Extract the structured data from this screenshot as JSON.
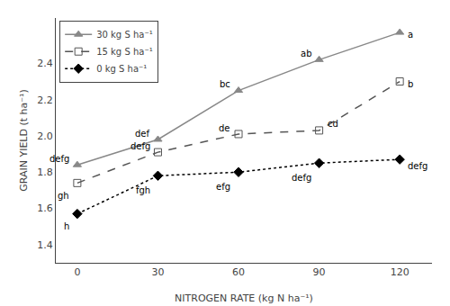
{
  "chart_data": {
    "type": "line",
    "x": [
      0,
      30,
      60,
      90,
      120
    ],
    "series": [
      {
        "name": "30 kg S ha⁻¹",
        "values": [
          1.84,
          1.98,
          2.25,
          2.42,
          2.57
        ],
        "color": "#888888",
        "marker": "triangle-up",
        "line_style": "solid",
        "annotations": [
          "defg",
          "def",
          "bc",
          "ab",
          "a"
        ]
      },
      {
        "name": "15 kg S ha⁻¹",
        "values": [
          1.74,
          1.91,
          2.01,
          2.03,
          2.3
        ],
        "color": "#555555",
        "marker": "square-open",
        "line_style": "dash",
        "annotations": [
          "gh",
          "defg",
          "de",
          "cd",
          "b"
        ]
      },
      {
        "name": "0 kg S ha⁻¹",
        "values": [
          1.57,
          1.78,
          1.8,
          1.85,
          1.87
        ],
        "color": "#000000",
        "marker": "diamond",
        "line_style": "dot",
        "annotations": [
          "h",
          "fgh",
          "efg",
          "defg",
          "defg"
        ]
      }
    ],
    "xlabel": "NITROGEN RATE (kg N ha⁻¹)",
    "ylabel": "GRAIN YIELD (t ha⁻¹)",
    "xlim": [
      -8,
      132
    ],
    "ylim": [
      1.3,
      2.65
    ],
    "xticks": [
      0,
      30,
      60,
      90,
      120
    ],
    "yticks": [
      1.4,
      1.6,
      1.8,
      {
        "value": 2.0,
        "label": "2.0"
      },
      2.2,
      2.4
    ],
    "grid": false,
    "legend": "upper left"
  }
}
